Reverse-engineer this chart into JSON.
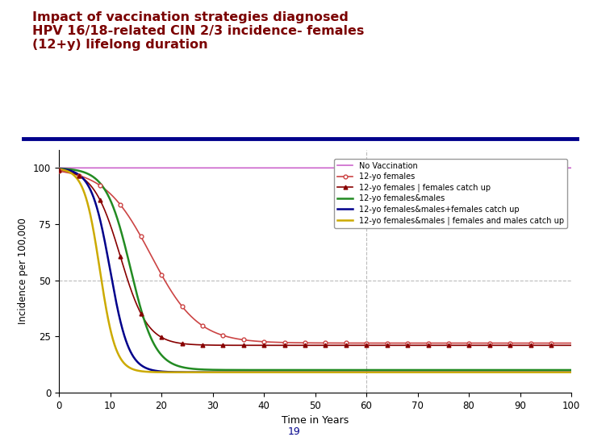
{
  "title_line1": "Impact of vaccination strategies diagnosed",
  "title_line2": "HPV 16/18-related CIN 2/3 incidence- females",
  "title_line3": "(12+y) lifelong duration",
  "title_color": "#7b0000",
  "title_fontsize": 11.5,
  "xlabel": "Time in Years",
  "ylabel": "Incidence per 100,000",
  "xlim": [
    0,
    100
  ],
  "ylim": [
    0,
    108
  ],
  "yticks": [
    0,
    25,
    50,
    75,
    100
  ],
  "xticks": [
    0,
    10,
    20,
    30,
    40,
    50,
    60,
    70,
    80,
    90,
    100
  ],
  "dashed_vline_x": 60,
  "dashed_hline_y": 50,
  "separator_color": "#00008b",
  "background_color": "#ffffff",
  "page_number": "19",
  "series": [
    {
      "name": "No Vaccination",
      "color": "#cc66cc",
      "linewidth": 1.2,
      "final_value": 100,
      "decay_k": 0,
      "midpoint": 50
    },
    {
      "name": "12-yo females",
      "color": "#cc4444",
      "linewidth": 1.2,
      "marker": "o",
      "marker_size": 3.5,
      "markerfacecolor": "white",
      "final_value": 22,
      "decay_k": 0.22,
      "midpoint": 18
    },
    {
      "name": "12-yo females | females catch up",
      "color": "#880000",
      "linewidth": 1.2,
      "marker": "^",
      "marker_size": 3.5,
      "markerfacecolor": "#880000",
      "final_value": 21,
      "decay_k": 0.38,
      "midpoint": 12
    },
    {
      "name": "12-yo females&males",
      "color": "#228b22",
      "linewidth": 1.8,
      "final_value": 10,
      "decay_k": 0.42,
      "midpoint": 14
    },
    {
      "name": "12-yo females&males+females catch up",
      "color": "#00008b",
      "linewidth": 1.8,
      "final_value": 9,
      "decay_k": 0.55,
      "midpoint": 10
    },
    {
      "name": "12-yo females&males | females and males catch up",
      "color": "#ccaa00",
      "linewidth": 1.8,
      "final_value": 9,
      "decay_k": 0.65,
      "midpoint": 8
    }
  ]
}
